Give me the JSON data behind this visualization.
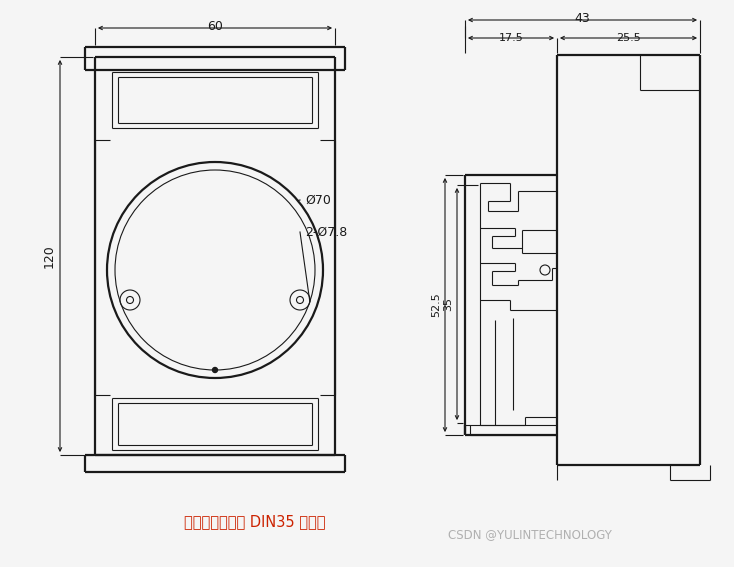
{
  "bg_color": "#f5f5f5",
  "line_color": "#1a1a1a",
  "text_color_red": "#cc2200",
  "text_color_gray": "#b0b0b0",
  "annotation_text1": "可以安装在标准 DIN35 导轨上",
  "annotation_text2": "CSDN @YULINTECHNOLOGY",
  "dim_60": "60",
  "dim_120": "120",
  "dim_phi70": "Ø70",
  "dim_phi78": "2-Ø7.8",
  "dim_43": "43",
  "dim_175": "17.5",
  "dim_255": "25.5",
  "dim_525": "52.5",
  "dim_35": "35"
}
